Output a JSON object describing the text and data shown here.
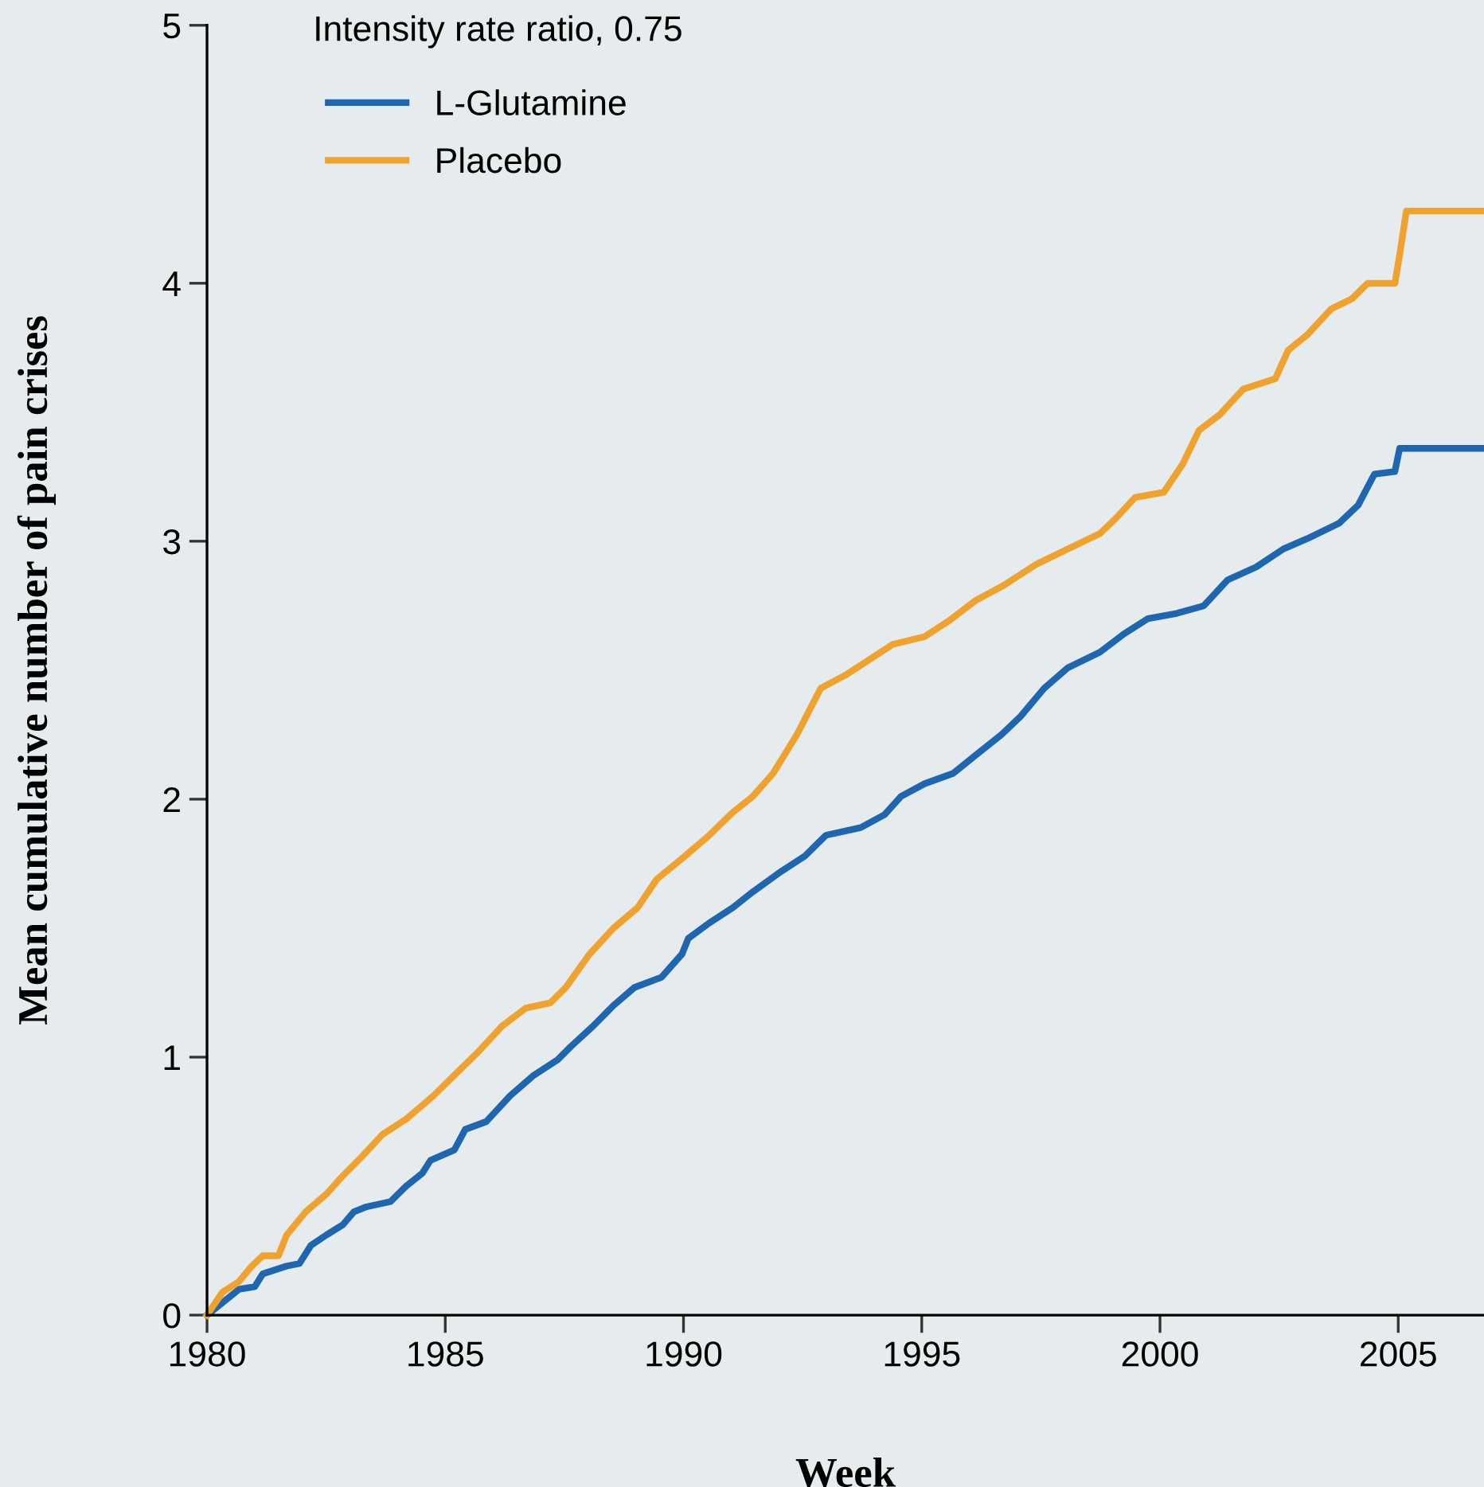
{
  "chart_data": {
    "type": "line",
    "xlabel": "Week",
    "ylabel": "Mean cumulative number of pain crises",
    "annotations": [
      "Intensity rate ratio, 0.75"
    ],
    "legend": "top left",
    "grid": false,
    "line_style": "solid",
    "marker": "none",
    "xlim": [
      1980,
      2006.8
    ],
    "xticks": [
      1980,
      1985,
      1990,
      1995,
      2000,
      2005
    ],
    "ylim": [
      0,
      5
    ],
    "yticks": [
      0,
      1,
      2,
      3,
      4,
      5
    ],
    "series": [
      {
        "name": "L-Glutamine",
        "color": "#1f66b0",
        "x": [
          1980,
          1980.67,
          1981.0,
          1981.17,
          1981.67,
          1981.94,
          1982.18,
          1982.5,
          1982.85,
          1983.08,
          1983.35,
          1983.85,
          1984.18,
          1984.52,
          1984.69,
          1985.19,
          1985.42,
          1985.86,
          1986.36,
          1986.86,
          1987.36,
          1987.63,
          1988.1,
          1988.53,
          1988.97,
          1989.54,
          1989.97,
          1990.1,
          1990.54,
          1991.04,
          1991.45,
          1992.05,
          1992.55,
          1992.99,
          1993.72,
          1994.22,
          1994.56,
          1995.06,
          1995.66,
          1996.13,
          1996.67,
          1997.07,
          1997.57,
          1998.07,
          1998.74,
          1999.24,
          1999.75,
          2000.35,
          2000.92,
          2001.42,
          2002.02,
          2002.59,
          2003.09,
          2003.76,
          2004.16,
          2004.5,
          2004.93,
          2005.03,
          2006.8
        ],
        "values": [
          0,
          0.1,
          0.11,
          0.16,
          0.19,
          0.2,
          0.27,
          0.31,
          0.35,
          0.4,
          0.42,
          0.44,
          0.5,
          0.55,
          0.6,
          0.64,
          0.72,
          0.75,
          0.85,
          0.93,
          0.99,
          1.04,
          1.12,
          1.2,
          1.27,
          1.31,
          1.4,
          1.46,
          1.52,
          1.58,
          1.64,
          1.72,
          1.78,
          1.86,
          1.89,
          1.94,
          2.01,
          2.06,
          2.1,
          2.17,
          2.25,
          2.32,
          2.43,
          2.51,
          2.57,
          2.64,
          2.7,
          2.72,
          2.75,
          2.85,
          2.9,
          2.97,
          3.01,
          3.07,
          3.14,
          3.26,
          3.27,
          3.36,
          3.36
        ]
      },
      {
        "name": "Placebo",
        "color": "#f0a22e",
        "x": [
          1980,
          1980.33,
          1980.67,
          1980.94,
          1981.17,
          1981.5,
          1981.67,
          1982.07,
          1982.51,
          1982.85,
          1983.28,
          1983.68,
          1984.18,
          1984.75,
          1985.19,
          1985.69,
          1986.19,
          1986.69,
          1987.2,
          1987.53,
          1988.03,
          1988.53,
          1989.04,
          1989.44,
          1989.97,
          1990.54,
          1991.04,
          1991.45,
          1991.88,
          1992.38,
          1992.88,
          1993.39,
          1993.89,
          1994.39,
          1995.06,
          1995.56,
          1996.13,
          1996.73,
          1997.4,
          1998.07,
          1998.74,
          1999.08,
          1999.48,
          2000.08,
          2000.48,
          2000.82,
          2001.25,
          2001.75,
          2002.42,
          2002.69,
          2003.09,
          2003.59,
          2004.03,
          2004.36,
          2004.93,
          2005.03,
          2005.17,
          2006.8
        ],
        "values": [
          0,
          0.09,
          0.13,
          0.19,
          0.23,
          0.23,
          0.31,
          0.4,
          0.47,
          0.54,
          0.62,
          0.7,
          0.76,
          0.85,
          0.93,
          1.02,
          1.12,
          1.19,
          1.21,
          1.27,
          1.4,
          1.5,
          1.58,
          1.69,
          1.77,
          1.86,
          1.95,
          2.01,
          2.1,
          2.25,
          2.43,
          2.48,
          2.54,
          2.6,
          2.63,
          2.69,
          2.77,
          2.83,
          2.91,
          2.97,
          3.03,
          3.09,
          3.17,
          3.19,
          3.3,
          3.43,
          3.49,
          3.59,
          3.63,
          3.74,
          3.8,
          3.9,
          3.94,
          4.0,
          4.0,
          4.11,
          4.28,
          4.28
        ]
      }
    ]
  }
}
